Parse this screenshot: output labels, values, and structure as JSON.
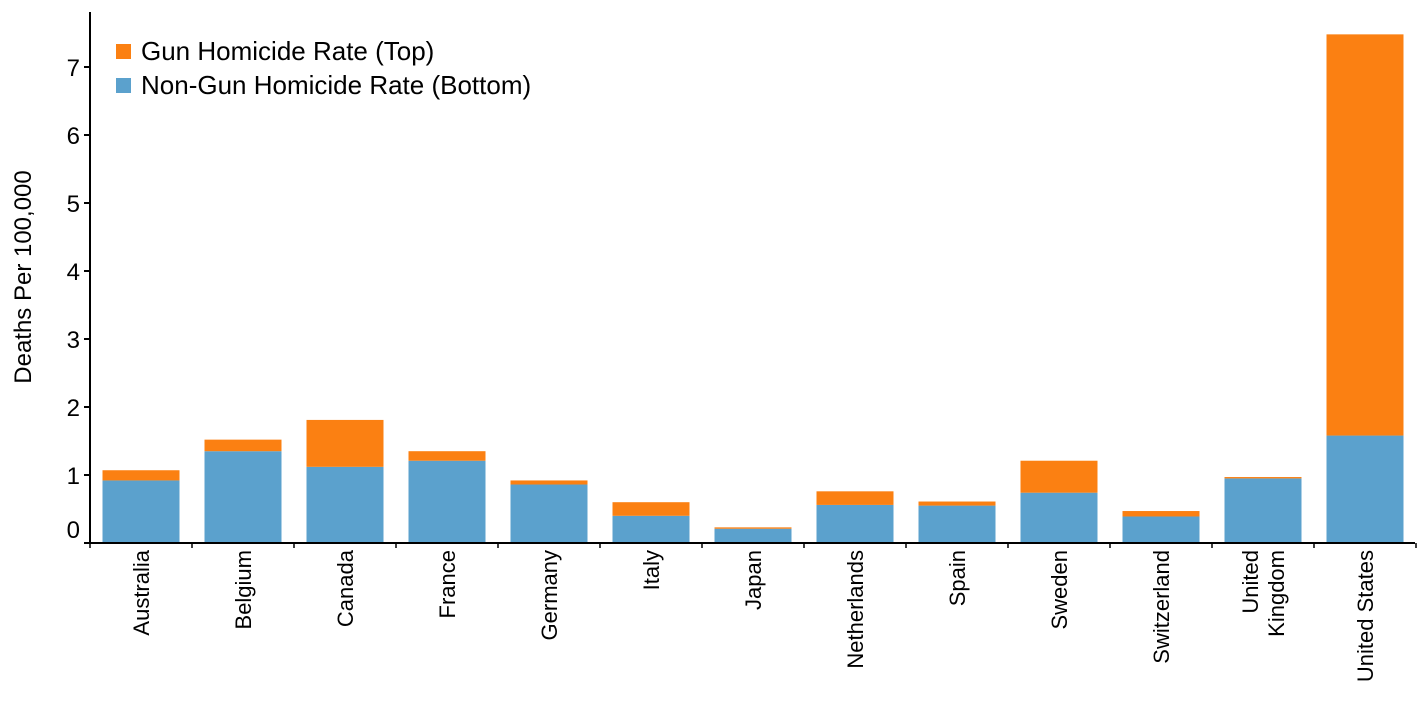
{
  "chart_data": {
    "type": "bar",
    "stacked": true,
    "ylabel": "Deaths Per 100,000",
    "ylim": [
      0,
      7.8
    ],
    "y_ticks": [
      "0",
      "1",
      "2",
      "3",
      "4",
      "5",
      "6",
      "7"
    ],
    "categories": [
      [
        "Australia"
      ],
      [
        "Belgium"
      ],
      [
        "Canada"
      ],
      [
        "France"
      ],
      [
        "Germany"
      ],
      [
        "Italy"
      ],
      [
        "Japan"
      ],
      [
        "Netherlands"
      ],
      [
        "Spain"
      ],
      [
        "Sweden"
      ],
      [
        "Switzerland"
      ],
      [
        "United",
        "Kingdom"
      ],
      [
        "United States"
      ]
    ],
    "series": [
      {
        "name": "Non-Gun Homicide Rate (Bottom)",
        "color": "#5ba1cd",
        "values": [
          0.92,
          1.35,
          1.12,
          1.21,
          0.86,
          0.4,
          0.21,
          0.56,
          0.55,
          0.74,
          0.39,
          0.95,
          1.58
        ]
      },
      {
        "name": "Gun Homicide Rate (Top)",
        "color": "#fb8012",
        "values": [
          0.15,
          0.17,
          0.69,
          0.14,
          0.06,
          0.2,
          0.02,
          0.2,
          0.06,
          0.47,
          0.08,
          0.02,
          5.9
        ]
      }
    ],
    "legend": {
      "position": "top-left",
      "entries": [
        "Gun Homicide Rate (Top)",
        "Non-Gun Homicide Rate (Bottom)"
      ]
    },
    "grid": false
  }
}
